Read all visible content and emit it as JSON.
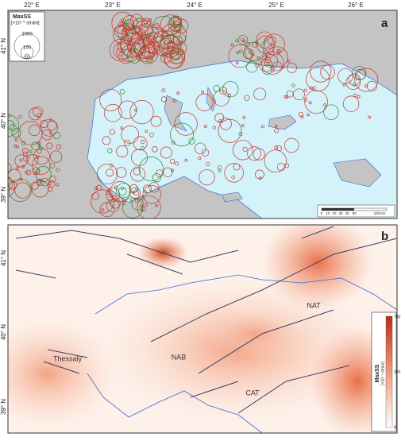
{
  "panel_a": {
    "label": "a",
    "legend_title": "MaxSS",
    "legend_unit": "[×10⁻⁹ strain]",
    "legend_sizes": [
      "1000",
      "100",
      "10"
    ],
    "scale_bar": [
      "0",
      "10",
      "20",
      "30",
      "40",
      "50",
      "100 km"
    ]
  },
  "panel_b": {
    "label": "b",
    "regions": [
      "NAT",
      "NAB",
      "CAT",
      "Thessaly"
    ],
    "colorbar_title": "MaxSS",
    "colorbar_unit": "[×10⁻⁹ strain]",
    "colorbar_ticks": [
      "700",
      "350",
      "0"
    ]
  },
  "lon_labels": [
    "22° E",
    "23° E",
    "24° E",
    "25° E",
    "26° E"
  ],
  "lat_labels": [
    "41° N",
    "40° N",
    "39° N"
  ]
}
